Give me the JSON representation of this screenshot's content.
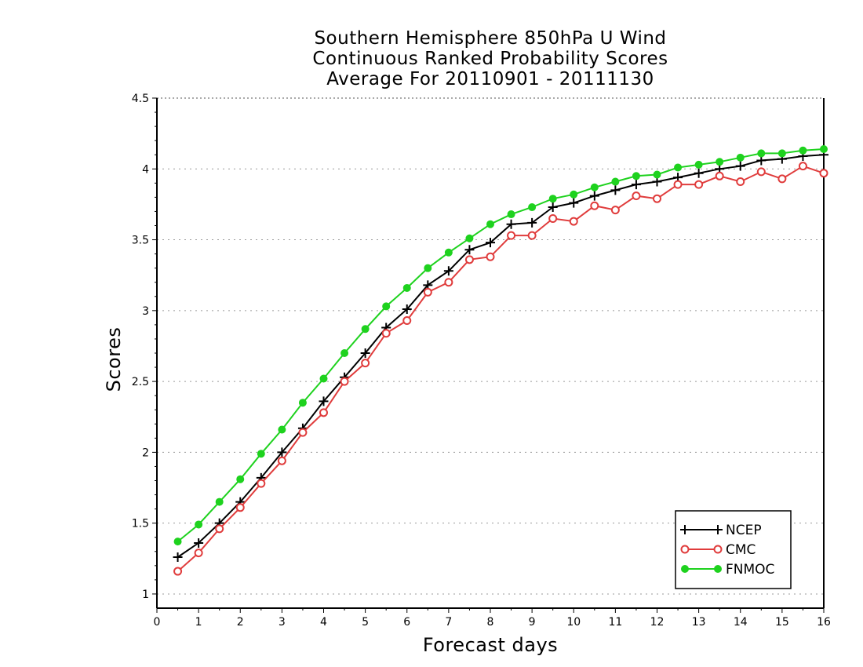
{
  "chart_data": {
    "type": "line",
    "title_lines": [
      "Southern Hemisphere 850hPa U Wind",
      "Continuous Ranked Probability Scores",
      "Average For 20110901 - 20111130"
    ],
    "xlabel": "Forecast days",
    "ylabel": "Scores",
    "xlim": [
      0,
      16
    ],
    "ylim": [
      0.9,
      4.5
    ],
    "xticks": [
      "0",
      "1",
      "2",
      "3",
      "4",
      "5",
      "6",
      "7",
      "8",
      "9",
      "10",
      "11",
      "12",
      "13",
      "14",
      "15",
      "16"
    ],
    "yticks": [
      "1",
      "1.5",
      "2",
      "2.5",
      "3",
      "3.5",
      "4",
      "4.5"
    ],
    "grid": "horizontal dotted",
    "legend_position": "bottom-right",
    "x": [
      0.5,
      1,
      1.5,
      2,
      2.5,
      3,
      3.5,
      4,
      4.5,
      5,
      5.5,
      6,
      6.5,
      7,
      7.5,
      8,
      8.5,
      9,
      9.5,
      10,
      10.5,
      11,
      11.5,
      12,
      12.5,
      13,
      13.5,
      14,
      14.5,
      15,
      15.5,
      16
    ],
    "series": [
      {
        "name": "NCEP",
        "color": "#000000",
        "marker": "plus",
        "values": [
          1.26,
          1.36,
          1.5,
          1.65,
          1.82,
          2.0,
          2.17,
          2.36,
          2.53,
          2.7,
          2.88,
          3.01,
          3.18,
          3.28,
          3.43,
          3.48,
          3.61,
          3.62,
          3.73,
          3.76,
          3.81,
          3.85,
          3.89,
          3.91,
          3.94,
          3.97,
          4.0,
          4.02,
          4.06,
          4.07,
          4.09,
          4.1
        ]
      },
      {
        "name": "CMC",
        "color": "#e03c3c",
        "marker": "open-circle",
        "values": [
          1.16,
          1.29,
          1.46,
          1.61,
          1.78,
          1.94,
          2.14,
          2.28,
          2.5,
          2.63,
          2.84,
          2.93,
          3.13,
          3.2,
          3.36,
          3.38,
          3.53,
          3.53,
          3.65,
          3.63,
          3.74,
          3.71,
          3.81,
          3.79,
          3.89,
          3.89,
          3.95,
          3.91,
          3.98,
          3.93,
          4.02,
          3.97
        ]
      },
      {
        "name": "FNMOC",
        "color": "#1ed21e",
        "marker": "filled-circle",
        "values": [
          1.37,
          1.49,
          1.65,
          1.81,
          1.99,
          2.16,
          2.35,
          2.52,
          2.7,
          2.87,
          3.03,
          3.16,
          3.3,
          3.41,
          3.51,
          3.61,
          3.68,
          3.73,
          3.79,
          3.82,
          3.87,
          3.91,
          3.95,
          3.96,
          4.01,
          4.03,
          4.05,
          4.08,
          4.11,
          4.11,
          4.13,
          4.14
        ]
      }
    ]
  }
}
